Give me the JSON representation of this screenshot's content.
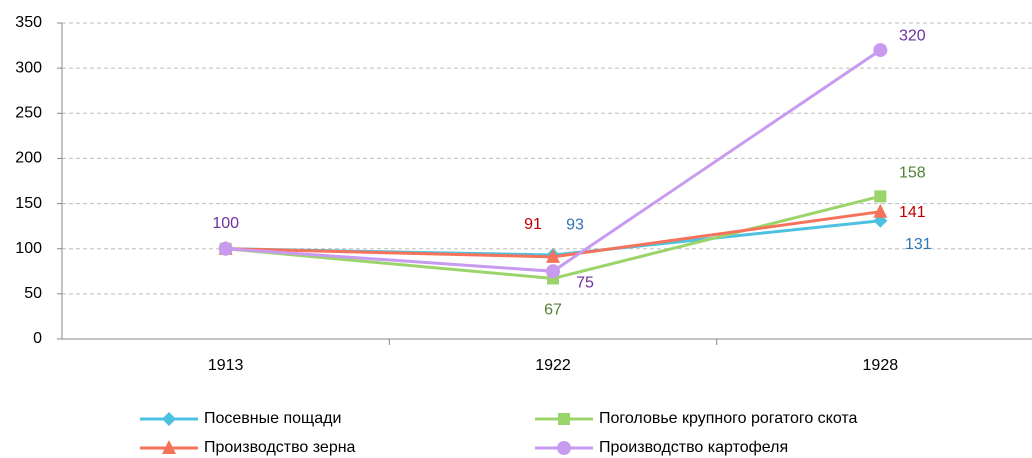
{
  "chart_data": {
    "type": "line",
    "categories": [
      "1913",
      "1922",
      "1928"
    ],
    "ylim": [
      0,
      350
    ],
    "yticks": [
      0,
      50,
      100,
      150,
      200,
      250,
      300,
      350
    ],
    "grid": true,
    "series": [
      {
        "name": "Посевные пощади",
        "color": "#4fc1e0",
        "label_color": "#2e75b6",
        "marker": "diamond",
        "values": [
          100,
          93,
          131
        ],
        "value_labels": [
          null,
          "93",
          "131"
        ]
      },
      {
        "name": "Поголовье крупного рогатого скота",
        "color": "#9bd46b",
        "label_color": "#538135",
        "marker": "square",
        "values": [
          100,
          67,
          158
        ],
        "value_labels": [
          null,
          "67",
          "158"
        ]
      },
      {
        "name": "Производство зерна",
        "color": "#f4735a",
        "label_color": "#c00000",
        "marker": "triangle",
        "values": [
          100,
          91,
          141
        ],
        "value_labels": [
          null,
          "91",
          "141"
        ]
      },
      {
        "name": "Производство картофеля",
        "color": "#c89bf0",
        "label_color": "#7030a0",
        "marker": "circle",
        "values": [
          100,
          75,
          320
        ],
        "value_labels": [
          "100",
          "75",
          "320"
        ]
      }
    ]
  }
}
